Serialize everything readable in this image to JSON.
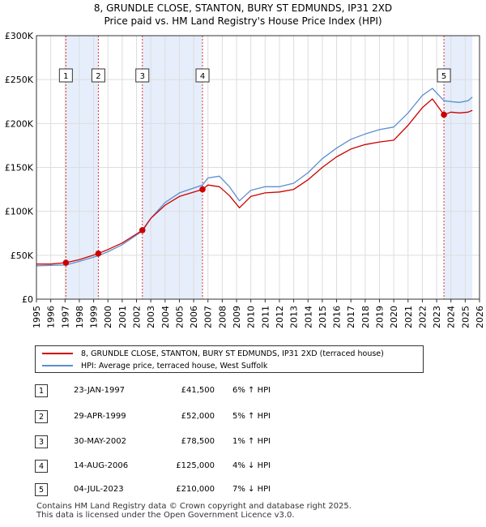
{
  "chart_data": {
    "type": "line",
    "title": "8, GRUNDLE CLOSE, STANTON, BURY ST EDMUNDS, IP31 2XD",
    "subtitle": "Price paid vs. HM Land Registry's House Price Index (HPI)",
    "xlim": [
      1995,
      2026
    ],
    "ylim": [
      0,
      300000
    ],
    "x_ticks": [
      "1995",
      "1996",
      "1997",
      "1998",
      "1999",
      "2000",
      "2001",
      "2002",
      "2003",
      "2004",
      "2005",
      "2006",
      "2007",
      "2008",
      "2009",
      "2010",
      "2011",
      "2012",
      "2013",
      "2014",
      "2015",
      "2016",
      "2017",
      "2018",
      "2019",
      "2020",
      "2021",
      "2022",
      "2023",
      "2024",
      "2025",
      "2026"
    ],
    "y_ticks": [
      {
        "label": "£0",
        "value": 0
      },
      {
        "label": "£50K",
        "value": 50000
      },
      {
        "label": "£100K",
        "value": 100000
      },
      {
        "label": "£150K",
        "value": 150000
      },
      {
        "label": "£200K",
        "value": 200000
      },
      {
        "label": "£250K",
        "value": 250000
      },
      {
        "label": "£300K",
        "value": 300000
      }
    ],
    "colors": {
      "property": "#cc0000",
      "hpi": "#5b8fd0",
      "shade": "#e6eefb",
      "grid": "#dddddd",
      "vline": "#dd3333"
    },
    "series": [
      {
        "name": "8, GRUNDLE CLOSE, STANTON, BURY ST EDMUNDS, IP31 2XD (terraced house)",
        "x": [
          1995.0,
          1996.0,
          1997.06,
          1998.0,
          1999.33,
          2000.0,
          2001.0,
          2002.41,
          2003.0,
          2004.0,
          2005.0,
          2006.62,
          2007.0,
          2007.8,
          2008.5,
          2009.2,
          2010.0,
          2011.0,
          2012.0,
          2013.0,
          2014.0,
          2015.0,
          2016.0,
          2017.0,
          2018.0,
          2019.0,
          2020.0,
          2021.0,
          2022.0,
          2022.7,
          2023.51,
          2024.0,
          2024.6,
          2025.2,
          2025.5
        ],
        "values": [
          40000,
          40000,
          41500,
          45000,
          52000,
          56500,
          64000,
          78500,
          92000,
          107000,
          117000,
          125000,
          130000,
          128000,
          118000,
          104000,
          117000,
          121000,
          122000,
          125000,
          136000,
          150000,
          162000,
          171000,
          176000,
          179000,
          181000,
          198000,
          218000,
          228000,
          210000,
          213000,
          212000,
          213000,
          215000
        ]
      },
      {
        "name": "HPI: Average price, terraced house, West Suffolk",
        "x": [
          1995.0,
          1996.0,
          1997.06,
          1998.0,
          1999.33,
          2000.0,
          2001.0,
          2002.41,
          2003.0,
          2004.0,
          2005.0,
          2006.62,
          2007.0,
          2007.8,
          2008.5,
          2009.2,
          2010.0,
          2011.0,
          2012.0,
          2013.0,
          2014.0,
          2015.0,
          2016.0,
          2017.0,
          2018.0,
          2019.0,
          2020.0,
          2021.0,
          2022.0,
          2022.7,
          2023.51,
          2024.0,
          2024.6,
          2025.2,
          2025.5
        ],
        "values": [
          38000,
          38500,
          39000,
          43000,
          49500,
          54000,
          62000,
          77500,
          92000,
          110000,
          121000,
          130000,
          138000,
          140000,
          128000,
          112000,
          124000,
          128000,
          128000,
          132000,
          144000,
          160000,
          172000,
          182000,
          188000,
          193000,
          196000,
          212000,
          232000,
          240000,
          226000,
          225000,
          224000,
          226000,
          230000
        ]
      }
    ],
    "transactions": [
      {
        "num": "1",
        "x": 1997.06,
        "value": 41500
      },
      {
        "num": "2",
        "x": 1999.33,
        "value": 52000
      },
      {
        "num": "3",
        "x": 2002.41,
        "value": 78500
      },
      {
        "num": "4",
        "x": 2006.62,
        "value": 125000
      },
      {
        "num": "5",
        "x": 2023.51,
        "value": 210000
      }
    ],
    "shaded_spans": [
      [
        1997.06,
        1999.33
      ],
      [
        2002.41,
        2006.62
      ],
      [
        2023.51,
        2025.5
      ]
    ]
  },
  "legend": {
    "property_label": "8, GRUNDLE CLOSE, STANTON, BURY ST EDMUNDS, IP31 2XD (terraced house)",
    "hpi_label": "HPI: Average price, terraced house, West Suffolk"
  },
  "table": [
    {
      "num": "1",
      "date": "23-JAN-1997",
      "price": "£41,500",
      "hpi": "6% ↑ HPI"
    },
    {
      "num": "2",
      "date": "29-APR-1999",
      "price": "£52,000",
      "hpi": "5% ↑ HPI"
    },
    {
      "num": "3",
      "date": "30-MAY-2002",
      "price": "£78,500",
      "hpi": "1% ↑ HPI"
    },
    {
      "num": "4",
      "date": "14-AUG-2006",
      "price": "£125,000",
      "hpi": "4% ↓ HPI"
    },
    {
      "num": "5",
      "date": "04-JUL-2023",
      "price": "£210,000",
      "hpi": "7% ↓ HPI"
    }
  ],
  "footer": {
    "line1": "Contains HM Land Registry data © Crown copyright and database right 2025.",
    "line2": "This data is licensed under the Open Government Licence v3.0."
  }
}
